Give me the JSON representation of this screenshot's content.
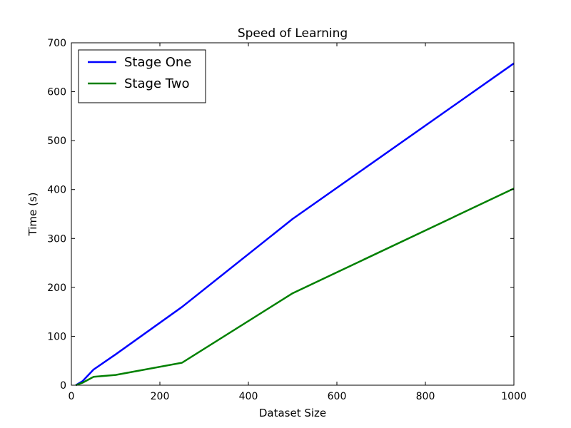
{
  "chart_data": {
    "type": "line",
    "title": "Speed of Learning",
    "xlabel": "Dataset Size",
    "ylabel": "Time (s)",
    "xlim": [
      0,
      1000
    ],
    "ylim": [
      0,
      700
    ],
    "x_ticks": [
      0,
      200,
      400,
      600,
      800,
      1000
    ],
    "y_ticks": [
      0,
      100,
      200,
      300,
      400,
      500,
      600,
      700
    ],
    "grid": false,
    "legend_position": "top-left",
    "series": [
      {
        "name": "Stage One",
        "color": "#0000ff",
        "x": [
          10,
          25,
          50,
          100,
          250,
          500,
          1000
        ],
        "y": [
          0,
          8,
          32,
          63,
          160,
          340,
          658
        ]
      },
      {
        "name": "Stage Two",
        "color": "#008000",
        "x": [
          10,
          25,
          50,
          100,
          250,
          500,
          1000
        ],
        "y": [
          0,
          5,
          17,
          21,
          46,
          188,
          402
        ]
      }
    ]
  }
}
